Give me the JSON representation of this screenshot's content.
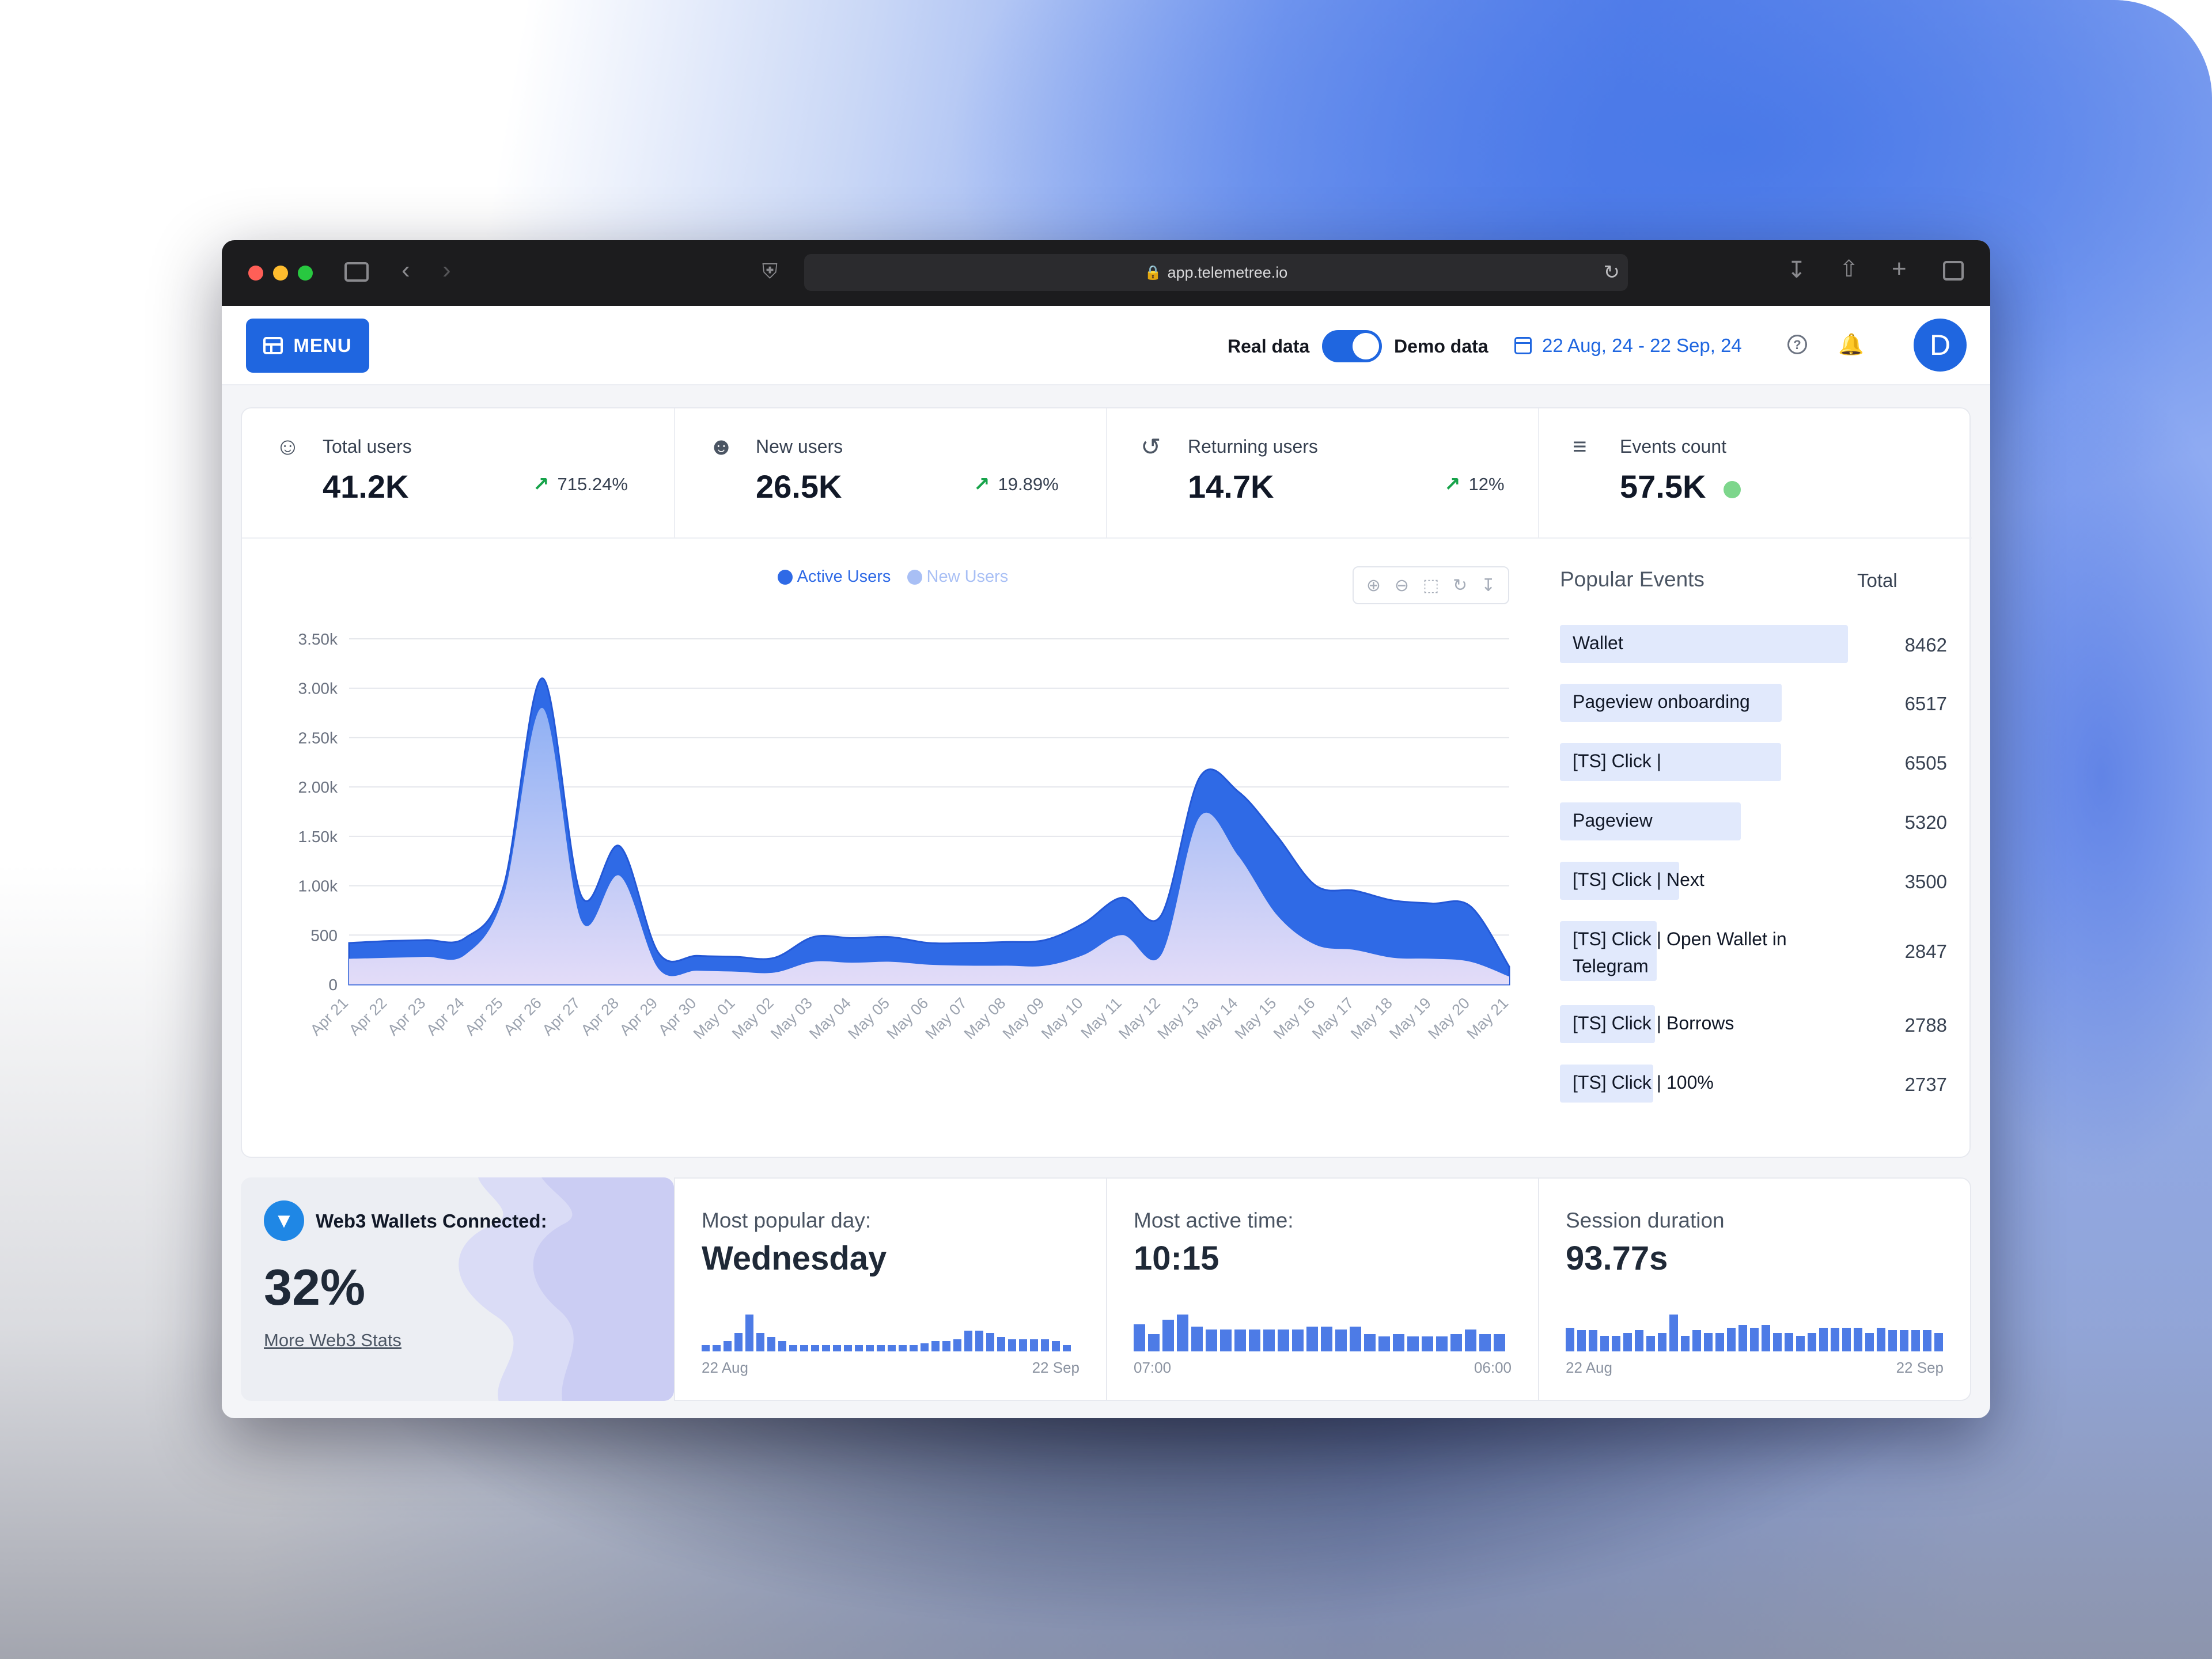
{
  "browser": {
    "url": "app.telemetree.io"
  },
  "appbar": {
    "menu_label": "MENU",
    "real_data_label": "Real data",
    "demo_data_label": "Demo data",
    "date_range": "22 Aug, 24 - 22 Sep, 24",
    "avatar_initial": "D"
  },
  "stats": [
    {
      "label": "Total users",
      "value": "41.2K",
      "trend": "715.24%",
      "icon": "user-icon"
    },
    {
      "label": "New users",
      "value": "26.5K",
      "trend": "19.89%",
      "icon": "users-icon"
    },
    {
      "label": "Returning users",
      "value": "14.7K",
      "trend": "12%",
      "icon": "refresh-icon"
    },
    {
      "label": "Events count",
      "value": "57.5K",
      "status_color": "#7dd68c",
      "icon": "list-icon"
    }
  ],
  "chart_data": {
    "type": "area",
    "series": [
      {
        "name": "Active Users",
        "color": "#2f6ae6",
        "values": [
          420,
          440,
          450,
          470,
          1000,
          3100,
          900,
          1400,
          320,
          290,
          280,
          270,
          480,
          470,
          480,
          420,
          420,
          430,
          450,
          620,
          880,
          700,
          2100,
          1950,
          1500,
          1000,
          950,
          850,
          820,
          790,
          180
        ]
      },
      {
        "name": "New Users",
        "color": "#a8bff5",
        "values": [
          260,
          270,
          280,
          300,
          900,
          2800,
          650,
          1100,
          160,
          140,
          130,
          120,
          230,
          220,
          230,
          200,
          190,
          190,
          190,
          300,
          500,
          300,
          1700,
          1300,
          700,
          400,
          350,
          270,
          260,
          230,
          80
        ]
      }
    ],
    "categories": [
      "Apr 21",
      "Apr 22",
      "Apr 23",
      "Apr 24",
      "Apr 25",
      "Apr 26",
      "Apr 27",
      "Apr 28",
      "Apr 29",
      "Apr 30",
      "May 01",
      "May 02",
      "May 03",
      "May 04",
      "May 05",
      "May 06",
      "May 07",
      "May 08",
      "May 09",
      "May 10",
      "May 11",
      "May 12",
      "May 13",
      "May 14",
      "May 15",
      "May 16",
      "May 17",
      "May 18",
      "May 19",
      "May 20",
      "May 21"
    ],
    "y_ticks": [
      "0",
      "500",
      "1.00k",
      "1.50k",
      "2.00k",
      "2.50k",
      "3.00k",
      "3.50k"
    ],
    "ylim": [
      0,
      3500
    ],
    "grid": true,
    "legend": "top-center"
  },
  "popular_events": {
    "title": "Popular Events",
    "total_header": "Total",
    "items": [
      {
        "name": "Wallet",
        "total": "8462",
        "value": 8462
      },
      {
        "name": "Pageview onboarding",
        "total": "6517",
        "value": 6517
      },
      {
        "name": "[TS] Click |",
        "total": "6505",
        "value": 6505
      },
      {
        "name": "Pageview",
        "total": "5320",
        "value": 5320
      },
      {
        "name": "[TS] Click | Next",
        "total": "3500",
        "value": 3500
      },
      {
        "name": "[TS] Click | Open Wallet in Telegram",
        "total": "2847",
        "value": 2847
      },
      {
        "name": "[TS] Click | Borrows",
        "total": "2788",
        "value": 2788
      },
      {
        "name": "[TS] Click | 100%",
        "total": "2737",
        "value": 2737
      }
    ]
  },
  "web3": {
    "title": "Web3 Wallets Connected:",
    "value": "32%",
    "link": "More Web3 Stats"
  },
  "metrics": [
    {
      "title": "Most popular day:",
      "value": "Wednesday",
      "start": "22 Aug",
      "end": "22 Sep",
      "bars": [
        3,
        3,
        5,
        9,
        18,
        9,
        7,
        5,
        3,
        3,
        3,
        3,
        3,
        3,
        3,
        3,
        3,
        3,
        3,
        3,
        4,
        5,
        5,
        6,
        10,
        10,
        9,
        7,
        6,
        6,
        6,
        6,
        5,
        3
      ]
    },
    {
      "title": "Most active time:",
      "value": "10:15",
      "start": "07:00",
      "end": "06:00",
      "bars": [
        11,
        7,
        13,
        15,
        10,
        9,
        9,
        9,
        9,
        9,
        9,
        9,
        10,
        10,
        9,
        10,
        7,
        6,
        7,
        6,
        6,
        6,
        7,
        9,
        7,
        7
      ]
    },
    {
      "title": "Session duration",
      "value": "93.77s",
      "start": "22 Aug",
      "end": "22 Sep",
      "bars": [
        9,
        8,
        8,
        6,
        6,
        7,
        8,
        6,
        7,
        14,
        6,
        8,
        7,
        7,
        9,
        10,
        9,
        10,
        7,
        7,
        6,
        7,
        9,
        9,
        9,
        9,
        7,
        9,
        8,
        8,
        8,
        8,
        7
      ]
    }
  ]
}
